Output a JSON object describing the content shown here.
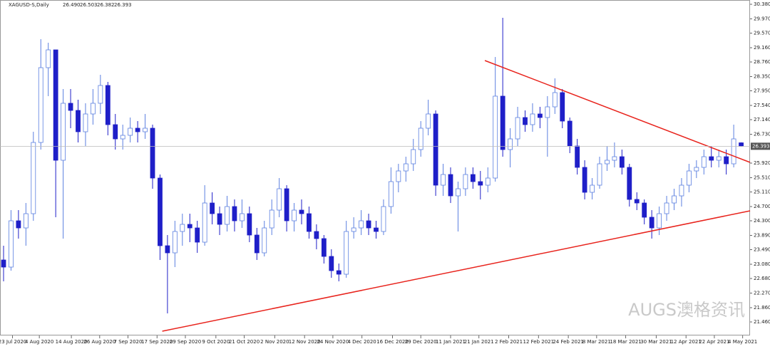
{
  "chart_data": {
    "type": "candlestick",
    "symbol": "XAGUSD-S,Daily",
    "header_ohlc": [
      "26.490",
      "26.503",
      "26.382",
      "26.393"
    ],
    "watermark": "AUGS澳格资讯",
    "bull_color": "#5b7fe0",
    "bear_color": "#1f1fc8",
    "trendline_color": "#e8231c",
    "ylim": [
      21.46,
      30.38
    ],
    "yticks": [
      {
        "value": 30.38,
        "label": "30.380"
      },
      {
        "value": 29.97,
        "label": "29.970"
      },
      {
        "value": 29.57,
        "label": "29.570"
      },
      {
        "value": 29.16,
        "label": "29.160"
      },
      {
        "value": 28.76,
        "label": "28.760"
      },
      {
        "value": 28.35,
        "label": "28.350"
      },
      {
        "value": 27.95,
        "label": "27.950"
      },
      {
        "value": 27.54,
        "label": "27.540"
      },
      {
        "value": 27.14,
        "label": "27.140"
      },
      {
        "value": 26.73,
        "label": "26.730"
      },
      {
        "value": 25.92,
        "label": "25.920"
      },
      {
        "value": 25.51,
        "label": "25.510"
      },
      {
        "value": 25.11,
        "label": "25.110"
      },
      {
        "value": 24.7,
        "label": "24.700"
      },
      {
        "value": 24.3,
        "label": "24.300"
      },
      {
        "value": 23.89,
        "label": "23.890"
      },
      {
        "value": 23.49,
        "label": "23.490"
      },
      {
        "value": 23.08,
        "label": "23.080"
      },
      {
        "value": 22.68,
        "label": "22.680"
      },
      {
        "value": 22.27,
        "label": "22.270"
      },
      {
        "value": 21.86,
        "label": "21.860"
      },
      {
        "value": 21.46,
        "label": "21.460"
      }
    ],
    "last_price": {
      "value": 26.393,
      "label": "26.393"
    },
    "xticks": [
      {
        "value": 1.2,
        "label": "23 Jul 2020"
      },
      {
        "value": 4.8,
        "label": "4 Aug 2020"
      },
      {
        "value": 9.1,
        "label": "14 Aug 2020"
      },
      {
        "value": 12.9,
        "label": "26 Aug 2020"
      },
      {
        "value": 16.7,
        "label": "7 Sep 2020"
      },
      {
        "value": 20.6,
        "label": "17 Sep 2020"
      },
      {
        "value": 24.4,
        "label": "29 Sep 2020"
      },
      {
        "value": 28.5,
        "label": "9 Oct 2020"
      },
      {
        "value": 32.3,
        "label": "21 Oct 2020"
      },
      {
        "value": 36.4,
        "label": "2 Nov 2020"
      },
      {
        "value": 40.4,
        "label": "12 Nov 2020"
      },
      {
        "value": 44.2,
        "label": "24 Nov 2020"
      },
      {
        "value": 48.1,
        "label": "4 Dec 2020"
      },
      {
        "value": 52.2,
        "label": "16 Dec 2020"
      },
      {
        "value": 56,
        "label": "29 Dec 2020"
      },
      {
        "value": 60,
        "label": "11 Jan 2021"
      },
      {
        "value": 63.8,
        "label": "21 Jan 2021"
      },
      {
        "value": 67.8,
        "label": "2 Feb 2021"
      },
      {
        "value": 71.8,
        "label": "12 Feb 2021"
      },
      {
        "value": 75.8,
        "label": "24 Feb 2021"
      },
      {
        "value": 79.6,
        "label": "8 Mar 2021"
      },
      {
        "value": 83.5,
        "label": "18 Mar 2021"
      },
      {
        "value": 87.6,
        "label": "30 Mar 2021"
      },
      {
        "value": 91.6,
        "label": "12 Apr 2021"
      },
      {
        "value": 95.4,
        "label": "22 Apr 2021"
      },
      {
        "value": 99.2,
        "label": "4 May 2021"
      }
    ],
    "candles": [
      [
        23.2,
        23.6,
        22.6,
        23.0
      ],
      [
        23.0,
        24.6,
        22.9,
        24.3
      ],
      [
        24.3,
        24.6,
        23.8,
        24.1
      ],
      [
        24.1,
        24.8,
        23.6,
        24.5
      ],
      [
        24.5,
        26.8,
        24.3,
        26.5
      ],
      [
        26.5,
        29.4,
        26.3,
        28.6
      ],
      [
        28.6,
        29.3,
        27.8,
        29.1
      ],
      [
        29.1,
        29.1,
        24.4,
        26.0
      ],
      [
        26.0,
        28.0,
        23.8,
        27.6
      ],
      [
        27.6,
        28.0,
        26.9,
        27.4
      ],
      [
        27.4,
        27.7,
        26.5,
        26.8
      ],
      [
        26.8,
        27.6,
        26.4,
        27.3
      ],
      [
        27.3,
        28.0,
        27.0,
        27.6
      ],
      [
        27.6,
        28.4,
        27.3,
        28.1
      ],
      [
        28.1,
        28.2,
        26.7,
        27.0
      ],
      [
        27.0,
        27.3,
        26.3,
        26.6
      ],
      [
        26.6,
        27.0,
        26.3,
        26.7
      ],
      [
        26.7,
        27.2,
        26.5,
        26.9
      ],
      [
        26.9,
        27.1,
        26.5,
        26.8
      ],
      [
        26.8,
        27.3,
        26.6,
        26.9
      ],
      [
        26.9,
        27.0,
        25.2,
        25.5
      ],
      [
        25.5,
        25.6,
        23.2,
        23.6
      ],
      [
        23.6,
        23.9,
        21.7,
        23.4
      ],
      [
        23.4,
        24.3,
        23.0,
        24.0
      ],
      [
        24.0,
        24.5,
        23.6,
        24.2
      ],
      [
        24.2,
        24.5,
        23.7,
        24.1
      ],
      [
        24.1,
        24.3,
        23.4,
        23.7
      ],
      [
        23.7,
        25.3,
        23.6,
        24.8
      ],
      [
        24.8,
        25.1,
        24.2,
        24.5
      ],
      [
        24.5,
        24.7,
        23.9,
        24.2
      ],
      [
        24.2,
        25.0,
        24.0,
        24.7
      ],
      [
        24.7,
        24.9,
        24.0,
        24.3
      ],
      [
        24.3,
        24.9,
        24.1,
        24.5
      ],
      [
        24.5,
        24.7,
        23.7,
        23.9
      ],
      [
        23.9,
        24.1,
        23.2,
        23.4
      ],
      [
        23.4,
        24.3,
        23.3,
        24.1
      ],
      [
        24.1,
        24.9,
        23.9,
        24.6
      ],
      [
        24.6,
        25.5,
        24.4,
        25.2
      ],
      [
        25.2,
        25.3,
        24.0,
        24.3
      ],
      [
        24.3,
        24.8,
        24.0,
        24.6
      ],
      [
        24.6,
        24.9,
        24.2,
        24.5
      ],
      [
        24.5,
        24.7,
        23.8,
        24.0
      ],
      [
        24.0,
        24.2,
        23.5,
        23.8
      ],
      [
        23.8,
        23.9,
        23.1,
        23.3
      ],
      [
        23.3,
        23.5,
        22.7,
        22.9
      ],
      [
        22.9,
        23.1,
        22.6,
        22.8
      ],
      [
        22.8,
        24.3,
        22.7,
        24.0
      ],
      [
        24.0,
        24.4,
        23.8,
        24.1
      ],
      [
        24.1,
        24.6,
        23.9,
        24.3
      ],
      [
        24.3,
        24.5,
        23.9,
        24.1
      ],
      [
        24.1,
        24.3,
        23.8,
        24.0
      ],
      [
        24.0,
        24.9,
        23.9,
        24.7
      ],
      [
        24.7,
        25.8,
        24.5,
        25.4
      ],
      [
        25.4,
        25.9,
        25.1,
        25.7
      ],
      [
        25.7,
        26.1,
        25.4,
        25.9
      ],
      [
        25.9,
        26.6,
        25.7,
        26.3
      ],
      [
        26.3,
        27.1,
        26.1,
        26.9
      ],
      [
        26.9,
        27.7,
        26.7,
        27.3
      ],
      [
        27.3,
        27.4,
        25.0,
        25.3
      ],
      [
        25.3,
        25.9,
        25.0,
        25.6
      ],
      [
        25.6,
        25.8,
        24.8,
        25.0
      ],
      [
        25.0,
        25.4,
        24.0,
        25.2
      ],
      [
        25.2,
        25.8,
        25.0,
        25.6
      ],
      [
        25.6,
        25.8,
        25.2,
        25.4
      ],
      [
        25.4,
        25.7,
        24.9,
        25.3
      ],
      [
        25.3,
        25.8,
        25.1,
        25.5
      ],
      [
        25.5,
        28.9,
        25.4,
        27.8
      ],
      [
        27.8,
        30.0,
        26.1,
        26.3
      ],
      [
        26.3,
        26.9,
        25.8,
        26.6
      ],
      [
        26.6,
        27.5,
        26.4,
        27.2
      ],
      [
        27.2,
        27.4,
        26.8,
        27.0
      ],
      [
        27.0,
        27.6,
        26.8,
        27.3
      ],
      [
        27.3,
        27.5,
        26.9,
        27.2
      ],
      [
        27.2,
        27.8,
        26.1,
        27.5
      ],
      [
        27.5,
        28.3,
        27.3,
        27.9
      ],
      [
        27.9,
        28.0,
        26.9,
        27.1
      ],
      [
        27.1,
        27.2,
        26.2,
        26.4
      ],
      [
        26.4,
        26.6,
        25.6,
        25.8
      ],
      [
        25.8,
        26.0,
        24.9,
        25.1
      ],
      [
        25.1,
        25.5,
        24.9,
        25.3
      ],
      [
        25.3,
        26.1,
        25.2,
        25.9
      ],
      [
        25.9,
        26.4,
        25.7,
        26.0
      ],
      [
        26.0,
        26.5,
        25.8,
        26.1
      ],
      [
        26.1,
        26.3,
        25.6,
        25.8
      ],
      [
        25.8,
        25.9,
        24.7,
        24.9
      ],
      [
        24.9,
        25.1,
        24.6,
        24.8
      ],
      [
        24.8,
        24.9,
        24.2,
        24.4
      ],
      [
        24.4,
        24.6,
        23.8,
        24.1
      ],
      [
        24.1,
        24.7,
        23.9,
        24.5
      ],
      [
        24.5,
        25.0,
        24.3,
        24.8
      ],
      [
        24.8,
        25.2,
        24.6,
        25.0
      ],
      [
        25.0,
        25.5,
        24.7,
        25.3
      ],
      [
        25.3,
        25.9,
        25.1,
        25.7
      ],
      [
        25.7,
        26.0,
        25.5,
        25.8
      ],
      [
        25.8,
        26.3,
        25.6,
        26.1
      ],
      [
        26.1,
        26.4,
        25.8,
        26.0
      ],
      [
        26.0,
        26.3,
        25.8,
        26.1
      ],
      [
        26.1,
        26.3,
        25.6,
        25.9
      ],
      [
        25.9,
        27.0,
        25.8,
        26.6
      ],
      [
        26.49,
        26.503,
        26.382,
        26.393
      ]
    ],
    "trendlines": [
      {
        "start": [
          64.6,
          28.8
        ],
        "end": [
          100.2,
          25.94
        ]
      },
      {
        "start": [
          21.3,
          21.2
        ],
        "end": [
          100.2,
          24.58
        ]
      }
    ]
  }
}
